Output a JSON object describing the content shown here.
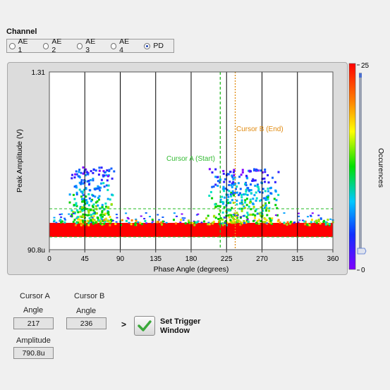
{
  "channel": {
    "title": "Channel",
    "options": [
      "AE 1",
      "AE 2",
      "AE 3",
      "AE 4",
      "PD"
    ],
    "selected": "PD"
  },
  "plot": {
    "y_label": "Peak Amplitude (V)",
    "x_label": "Phase Angle (degrees)",
    "y_top_label": "1.31",
    "y_bottom_label": "90.8u",
    "x_ticks": [
      "0",
      "45",
      "90",
      "135",
      "180",
      "225",
      "270",
      "315",
      "360"
    ],
    "cursor_a_label": "Cursor A (Start)",
    "cursor_b_label": "Cursor B (End)"
  },
  "colorbar": {
    "title": "Occurences",
    "max_label": "25",
    "min_label": "0"
  },
  "cursor_readout": {
    "cursor_a_title": "Cursor A",
    "cursor_b_title": "Cursor B",
    "angle_label_a": "Angle",
    "angle_label_b": "Angle",
    "angle_a": "217",
    "angle_b": "236",
    "amplitude_label": "Amplitude",
    "amplitude_a": "790.8u"
  },
  "trigger": {
    "arrow": ">",
    "label_line1": "Set Trigger",
    "label_line2": "Window"
  },
  "chart_data": {
    "type": "heatmap",
    "x_axis": {
      "label": "Phase Angle (degrees)",
      "min": 0,
      "max": 360,
      "ticks": [
        0,
        45,
        90,
        135,
        180,
        225,
        270,
        315,
        360
      ]
    },
    "y_axis": {
      "label": "Peak Amplitude (V)",
      "top_label": "1.31",
      "bottom_label": "90.8u"
    },
    "colorbar": {
      "label": "Occurences",
      "min": 0,
      "max": 25
    },
    "cursors": [
      {
        "name": "Cursor A (Start)",
        "phase_deg": 217,
        "color": "#22bb22"
      },
      {
        "name": "Cursor B (End)",
        "phase_deg": 236,
        "color": "#e08a10"
      }
    ],
    "colors": {
      "plot_bg": "#ffffff",
      "band": "#ff0000",
      "grid": "#000000"
    }
  }
}
